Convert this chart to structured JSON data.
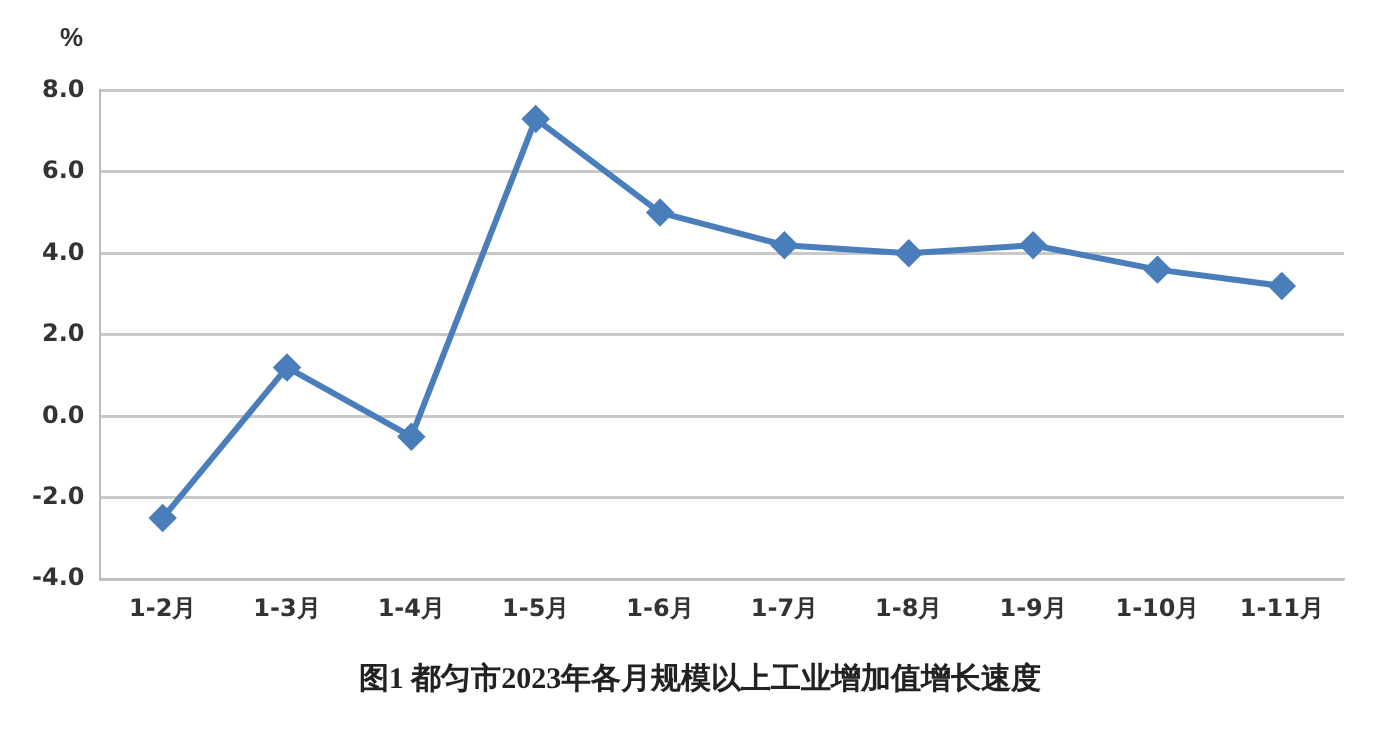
{
  "chart_data": {
    "type": "line",
    "title": "图1 都匀市2023年各月规模以上工业增加值增长速度",
    "ylabel": "%",
    "categories": [
      "1-2月",
      "1-3月",
      "1-4月",
      "1-5月",
      "1-6月",
      "1-7月",
      "1-8月",
      "1-9月",
      "1-10月",
      "1-11月"
    ],
    "series": [
      {
        "color": "#4a7ebb",
        "values": [
          -2.5,
          1.2,
          -0.5,
          7.3,
          5.0,
          4.2,
          4.0,
          4.2,
          3.6,
          3.2
        ]
      }
    ],
    "ylim": [
      -4,
      8
    ],
    "yticks": [
      {
        "value": -4,
        "label": "-4.0"
      },
      {
        "value": -2,
        "label": "-2.0"
      },
      {
        "value": 0,
        "label": "0.0"
      },
      {
        "value": 2,
        "label": "2.0"
      },
      {
        "value": 4,
        "label": "4.0"
      },
      {
        "value": 6,
        "label": "6.0"
      },
      {
        "value": 8,
        "label": "8.0"
      }
    ],
    "grid": "y",
    "marker": "diamond",
    "line_style": "solid",
    "legend": false
  }
}
